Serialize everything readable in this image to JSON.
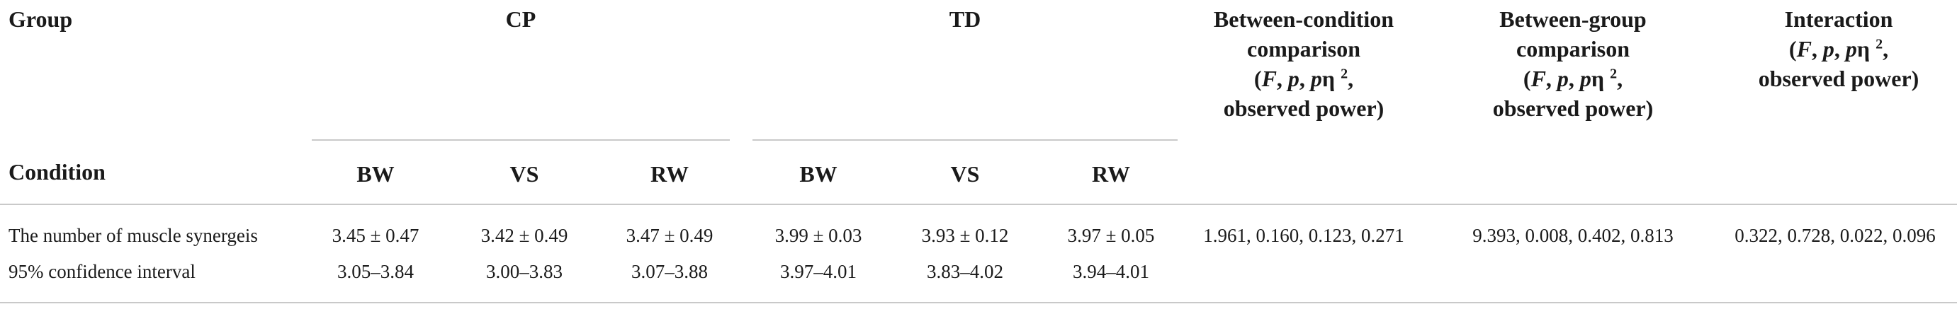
{
  "header": {
    "group_label": "Group",
    "condition_label": "Condition",
    "cp_label": "CP",
    "td_label": "TD",
    "between_condition": {
      "l1": "Between-condition",
      "l2": "comparison",
      "l3a": "(",
      "l3F": "F",
      "l3b": ", ",
      "l3p": "p",
      "l3c": ", ",
      "l3pe": "p",
      "l3eta": "η",
      "l3sup": "2",
      "l3d": ",",
      "l4": "observed power)"
    },
    "between_group": {
      "l1": "Between-group",
      "l2": "comparison",
      "l3a": "(",
      "l3F": "F",
      "l3b": ", ",
      "l3p": "p",
      "l3c": ", ",
      "l3pe": "p",
      "l3eta": "η",
      "l3sup": "2",
      "l3d": ",",
      "l4": "observed power)"
    },
    "interaction": {
      "l1": "Interaction",
      "l2a": "(",
      "l2F": "F",
      "l2b": ", ",
      "l2p": "p",
      "l2c": ", ",
      "l2pe": "p",
      "l2eta": "η",
      "l2sup": "2",
      "l2d": ",",
      "l3": "observed power)"
    },
    "sub_columns": [
      "BW",
      "VS",
      "RW",
      "BW",
      "VS",
      "RW"
    ]
  },
  "rows": [
    {
      "label": "The number of muscle synergeis",
      "cells": [
        "3.45 ± 0.47",
        "3.42 ± 0.49",
        "3.47 ± 0.49",
        "3.99 ± 0.03",
        "3.93 ± 0.12",
        "3.97 ± 0.05"
      ],
      "between_condition": "1.961, 0.160, 0.123, 0.271",
      "between_group": "9.393, 0.008, 0.402, 0.813",
      "interaction": "0.322, 0.728, 0.022, 0.096"
    },
    {
      "label": "95% confidence interval",
      "cells": [
        "3.05–3.84",
        "3.00–3.83",
        "3.07–3.88",
        "3.97–4.01",
        "3.83–4.02",
        "3.94–4.01"
      ],
      "between_condition": "",
      "between_group": "",
      "interaction": ""
    }
  ]
}
